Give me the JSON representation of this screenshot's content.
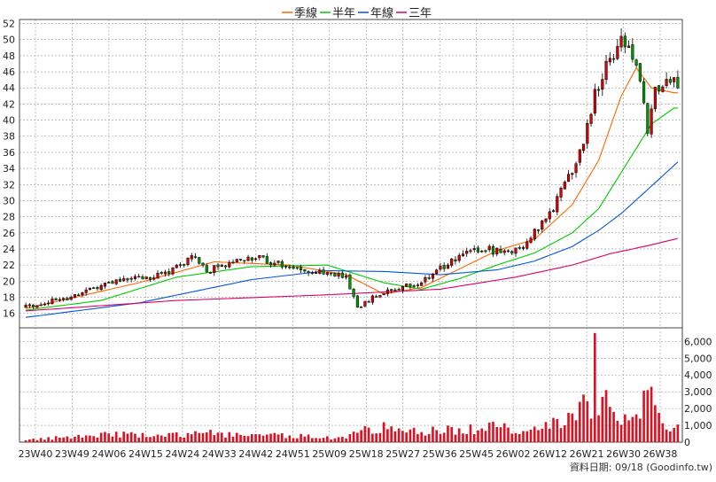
{
  "chart_data": {
    "type": "candlestick",
    "legend": [
      {
        "name": "季線",
        "color": "#ff6600"
      },
      {
        "name": "半年",
        "color": "#00cc00"
      },
      {
        "name": "年線",
        "color": "#0055dd"
      },
      {
        "name": "三年",
        "color": "#dd0066"
      }
    ],
    "price_axis": {
      "ticks": [
        16,
        18,
        20,
        22,
        24,
        26,
        28,
        30,
        32,
        34,
        36,
        38,
        40,
        42,
        44,
        46,
        48,
        50,
        52
      ],
      "ylim": [
        14.2,
        52.5
      ]
    },
    "volume_axis": {
      "ticks": [
        0,
        1000,
        2000,
        3000,
        4000,
        5000,
        6000
      ],
      "tick_labels": [
        "0",
        "1,000",
        "2,000",
        "3,000",
        "4,000",
        "5,000",
        "6,000"
      ],
      "ylim": [
        0,
        6600
      ]
    },
    "x_ticks": [
      "23W40",
      "23W49",
      "24W06",
      "24W15",
      "24W24",
      "24W33",
      "24W42",
      "24W51",
      "25W09",
      "25W18",
      "25W27",
      "25W36",
      "25W45",
      "26W02",
      "26W12",
      "26W21",
      "26W30",
      "26W38"
    ],
    "price_anchors": [
      [
        0,
        16.8
      ],
      [
        10,
        17.8
      ],
      [
        20,
        19.5
      ],
      [
        27,
        20.3
      ],
      [
        35,
        20.6
      ],
      [
        40,
        21.8
      ],
      [
        45,
        23.0
      ],
      [
        48,
        21.2
      ],
      [
        52,
        22.1
      ],
      [
        60,
        23.0
      ],
      [
        65,
        22.4
      ],
      [
        72,
        21.6
      ],
      [
        80,
        21.0
      ],
      [
        85,
        20.3
      ],
      [
        88,
        16.8
      ],
      [
        92,
        18.0
      ],
      [
        98,
        18.9
      ],
      [
        104,
        19.7
      ],
      [
        110,
        21.5
      ],
      [
        116,
        23.3
      ],
      [
        122,
        24.0
      ],
      [
        128,
        23.4
      ],
      [
        133,
        25.0
      ],
      [
        138,
        27.5
      ],
      [
        143,
        32.0
      ],
      [
        148,
        37.0
      ],
      [
        151,
        43.5
      ],
      [
        155,
        47.5
      ],
      [
        158,
        50.5
      ],
      [
        162,
        47.0
      ],
      [
        165,
        38.5
      ],
      [
        167,
        43.5
      ],
      [
        170,
        44.5
      ],
      [
        173,
        44.5
      ]
    ],
    "ma_series": [
      {
        "name": "季線",
        "values": [
          [
            0,
            16.6
          ],
          [
            30,
            19.8
          ],
          [
            50,
            22.4
          ],
          [
            70,
            22.0
          ],
          [
            85,
            20.8
          ],
          [
            95,
            18.4
          ],
          [
            105,
            19.2
          ],
          [
            115,
            21.5
          ],
          [
            125,
            23.8
          ],
          [
            135,
            25.2
          ],
          [
            145,
            29.5
          ],
          [
            152,
            35.0
          ],
          [
            158,
            43.0
          ],
          [
            162,
            46.5
          ],
          [
            166,
            44.0
          ],
          [
            172,
            43.4
          ]
        ]
      },
      {
        "name": "半年",
        "values": [
          [
            0,
            16.4
          ],
          [
            20,
            17.6
          ],
          [
            40,
            20.5
          ],
          [
            60,
            21.8
          ],
          [
            80,
            22.0
          ],
          [
            95,
            19.8
          ],
          [
            105,
            19.0
          ],
          [
            115,
            20.3
          ],
          [
            125,
            22.0
          ],
          [
            135,
            23.5
          ],
          [
            145,
            26.0
          ],
          [
            152,
            29.0
          ],
          [
            158,
            33.5
          ],
          [
            166,
            39.5
          ],
          [
            172,
            41.5
          ]
        ]
      },
      {
        "name": "年線",
        "values": [
          [
            0,
            15.5
          ],
          [
            30,
            17.3
          ],
          [
            60,
            20.2
          ],
          [
            80,
            21.3
          ],
          [
            95,
            21.2
          ],
          [
            110,
            20.8
          ],
          [
            125,
            21.4
          ],
          [
            135,
            22.5
          ],
          [
            145,
            24.3
          ],
          [
            152,
            26.3
          ],
          [
            158,
            28.4
          ],
          [
            166,
            31.8
          ],
          [
            173,
            34.8
          ]
        ]
      },
      {
        "name": "三年",
        "values": [
          [
            0,
            16.3
          ],
          [
            40,
            17.6
          ],
          [
            80,
            18.3
          ],
          [
            110,
            19.0
          ],
          [
            130,
            20.5
          ],
          [
            145,
            22.0
          ],
          [
            155,
            23.4
          ],
          [
            165,
            24.4
          ],
          [
            173,
            25.3
          ]
        ]
      }
    ],
    "volume_spikes": [
      [
        0,
        110
      ],
      [
        10,
        280
      ],
      [
        22,
        520
      ],
      [
        34,
        350
      ],
      [
        44,
        470
      ],
      [
        48,
        580
      ],
      [
        58,
        380
      ],
      [
        70,
        400
      ],
      [
        85,
        220
      ],
      [
        90,
        950
      ],
      [
        105,
        600
      ],
      [
        115,
        820
      ],
      [
        120,
        700
      ],
      [
        125,
        900
      ],
      [
        133,
        650
      ],
      [
        138,
        1200
      ],
      [
        143,
        1000
      ],
      [
        147,
        2400
      ],
      [
        150,
        1400
      ],
      [
        151,
        6500
      ],
      [
        152,
        1600
      ],
      [
        153,
        2700
      ],
      [
        154,
        3100
      ],
      [
        155,
        2100
      ],
      [
        156,
        1800
      ],
      [
        160,
        1300
      ],
      [
        161,
        1500
      ],
      [
        163,
        1400
      ],
      [
        165,
        3100
      ],
      [
        166,
        3300
      ],
      [
        167,
        2200
      ],
      [
        170,
        750
      ],
      [
        172,
        850
      ],
      [
        173,
        1050
      ]
    ],
    "num_bars": 174,
    "footer": "資料日期: 09/18  (Goodinfo.tw)"
  }
}
